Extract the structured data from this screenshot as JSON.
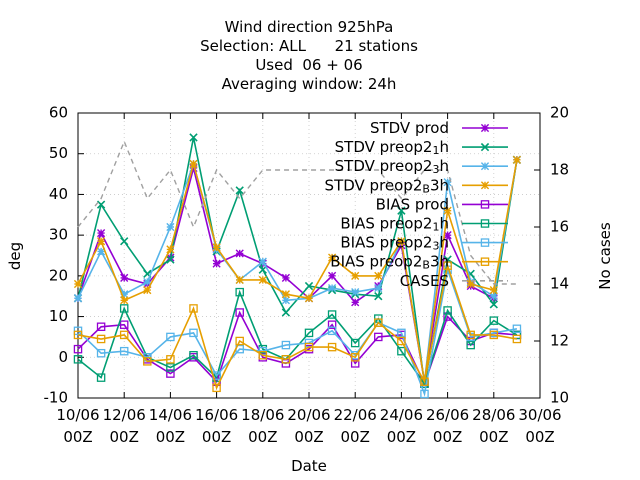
{
  "chart_data": {
    "type": "line",
    "title_lines": [
      "Wind direction 925hPa",
      "Selection: ALL      21 stations",
      "Used  06 + 06",
      "Averaging window: 24h"
    ],
    "xlabel": "Date",
    "ylabel": "deg",
    "y2label": "No cases",
    "x_tick_labels": [
      [
        "10/06",
        "00Z"
      ],
      [
        "12/06",
        "00Z"
      ],
      [
        "14/06",
        "00Z"
      ],
      [
        "16/06",
        "00Z"
      ],
      [
        "18/06",
        "00Z"
      ],
      [
        "20/06",
        "00Z"
      ],
      [
        "22/06",
        "00Z"
      ],
      [
        "24/06",
        "00Z"
      ],
      [
        "26/06",
        "00Z"
      ],
      [
        "28/06",
        "00Z"
      ],
      [
        "30/06",
        "00Z"
      ]
    ],
    "xlim": [
      0,
      40
    ],
    "ylim": [
      -10,
      60
    ],
    "y_ticks": [
      -10,
      0,
      10,
      20,
      30,
      40,
      50,
      60
    ],
    "y2lim": [
      10,
      20
    ],
    "y2_ticks": [
      10,
      12,
      14,
      16,
      18,
      20
    ],
    "x": [
      0,
      2,
      4,
      6,
      8,
      10,
      12,
      14,
      16,
      18,
      20,
      22,
      24,
      26,
      28,
      30,
      32,
      34,
      36,
      38
    ],
    "series": [
      {
        "name": "STDV prod",
        "label_parts": [
          [
            "STDV prod",
            ""
          ]
        ],
        "color": "#9400d3",
        "marker": "star",
        "dash": "",
        "axis": "y1",
        "values": [
          14.5,
          30.5,
          19.5,
          18,
          24.5,
          46.5,
          23,
          25.5,
          23,
          19.5,
          14.5,
          20,
          13.5,
          17.5,
          27.5,
          -6,
          30,
          17.5,
          14.5,
          48.5
        ]
      },
      {
        "name": "STDV preop2_1h",
        "label_parts": [
          [
            "STDV preop2",
            ""
          ],
          [
            "1",
            "sub"
          ],
          [
            "h",
            ""
          ]
        ],
        "color": "#009e73",
        "marker": "x",
        "dash": "",
        "axis": "y1",
        "values": [
          14.5,
          37.5,
          28.5,
          20.5,
          24,
          54,
          26,
          41,
          21.5,
          11,
          17.5,
          16.5,
          15.5,
          15,
          36,
          -6.5,
          24,
          20.5,
          13,
          48.5
        ]
      },
      {
        "name": "STDV preop2_3h",
        "label_parts": [
          [
            "STDV preop2",
            ""
          ],
          [
            "3",
            "sub"
          ],
          [
            "h",
            ""
          ]
        ],
        "color": "#56b4e9",
        "marker": "star",
        "dash": "",
        "axis": "y1",
        "values": [
          14.5,
          26,
          15.5,
          18.5,
          32,
          47.5,
          26.5,
          19,
          23.5,
          14,
          14.5,
          17,
          16,
          17,
          28.5,
          -6,
          43,
          18.5,
          15,
          48.5
        ]
      },
      {
        "name": "STDV preop2_B3h",
        "label_parts": [
          [
            "STDV preop2",
            ""
          ],
          [
            "B",
            "sub"
          ],
          [
            "3h",
            ""
          ]
        ],
        "color": "#e69f00",
        "marker": "star",
        "dash": "",
        "axis": "y1",
        "values": [
          18,
          28.5,
          14,
          16.5,
          26.5,
          47.5,
          27,
          19,
          19,
          15.5,
          14.5,
          24.5,
          20,
          20,
          28.5,
          -6,
          36,
          18,
          16.5,
          48.5
        ]
      },
      {
        "name": "BIAS prod",
        "label_parts": [
          [
            "BIAS prod",
            ""
          ]
        ],
        "color": "#9400d3",
        "marker": "square",
        "dash": "",
        "axis": "y1",
        "values": [
          2,
          7.5,
          8,
          -0.5,
          -4,
          0,
          -6,
          11,
          0,
          -1.5,
          2,
          8,
          -1.5,
          5,
          5.5,
          -6.5,
          10,
          4,
          6,
          5.5
        ]
      },
      {
        "name": "BIAS preop2_1h",
        "label_parts": [
          [
            "BIAS preop2",
            ""
          ],
          [
            "1",
            "sub"
          ],
          [
            "h",
            ""
          ]
        ],
        "color": "#009e73",
        "marker": "square",
        "dash": "",
        "axis": "y1",
        "values": [
          -0.5,
          -5,
          12,
          0,
          -2.5,
          0.5,
          -5,
          16,
          2,
          -0.5,
          6,
          10.5,
          3.5,
          9.5,
          1.5,
          -6.5,
          11.5,
          3,
          9,
          5.5
        ]
      },
      {
        "name": "BIAS preop2_3h",
        "label_parts": [
          [
            "BIAS preop2",
            ""
          ],
          [
            "3",
            "sub"
          ],
          [
            "h",
            ""
          ]
        ],
        "color": "#56b4e9",
        "marker": "square",
        "dash": "",
        "axis": "y1",
        "values": [
          6.5,
          1,
          1.5,
          0,
          5,
          6,
          -4.5,
          2,
          1.5,
          3,
          3.5,
          6.5,
          0.5,
          8.5,
          6,
          -9,
          21.5,
          5,
          6,
          7
        ]
      },
      {
        "name": "BIAS preop2_B3h",
        "label_parts": [
          [
            "BIAS preop2",
            ""
          ],
          [
            "B",
            "sub"
          ],
          [
            "3h",
            ""
          ]
        ],
        "color": "#e69f00",
        "marker": "square",
        "dash": "",
        "axis": "y1",
        "values": [
          5.5,
          4.5,
          5.5,
          -1,
          -0.5,
          12,
          -7.5,
          4,
          0.5,
          -0.5,
          2.5,
          2.5,
          0,
          8.5,
          4,
          -6,
          22.5,
          5.5,
          5.5,
          4.5
        ]
      },
      {
        "name": "CASES",
        "label_parts": [
          [
            "CASES",
            ""
          ]
        ],
        "color": "#a0a0a0",
        "marker": "none",
        "dash": "5,4",
        "axis": "y2",
        "values": [
          16,
          17,
          19,
          17,
          18,
          16,
          18,
          17,
          18,
          18,
          18,
          18,
          18,
          18,
          17,
          18,
          18,
          15,
          14,
          14
        ]
      }
    ],
    "legend_position": "top-right",
    "grid": true
  }
}
